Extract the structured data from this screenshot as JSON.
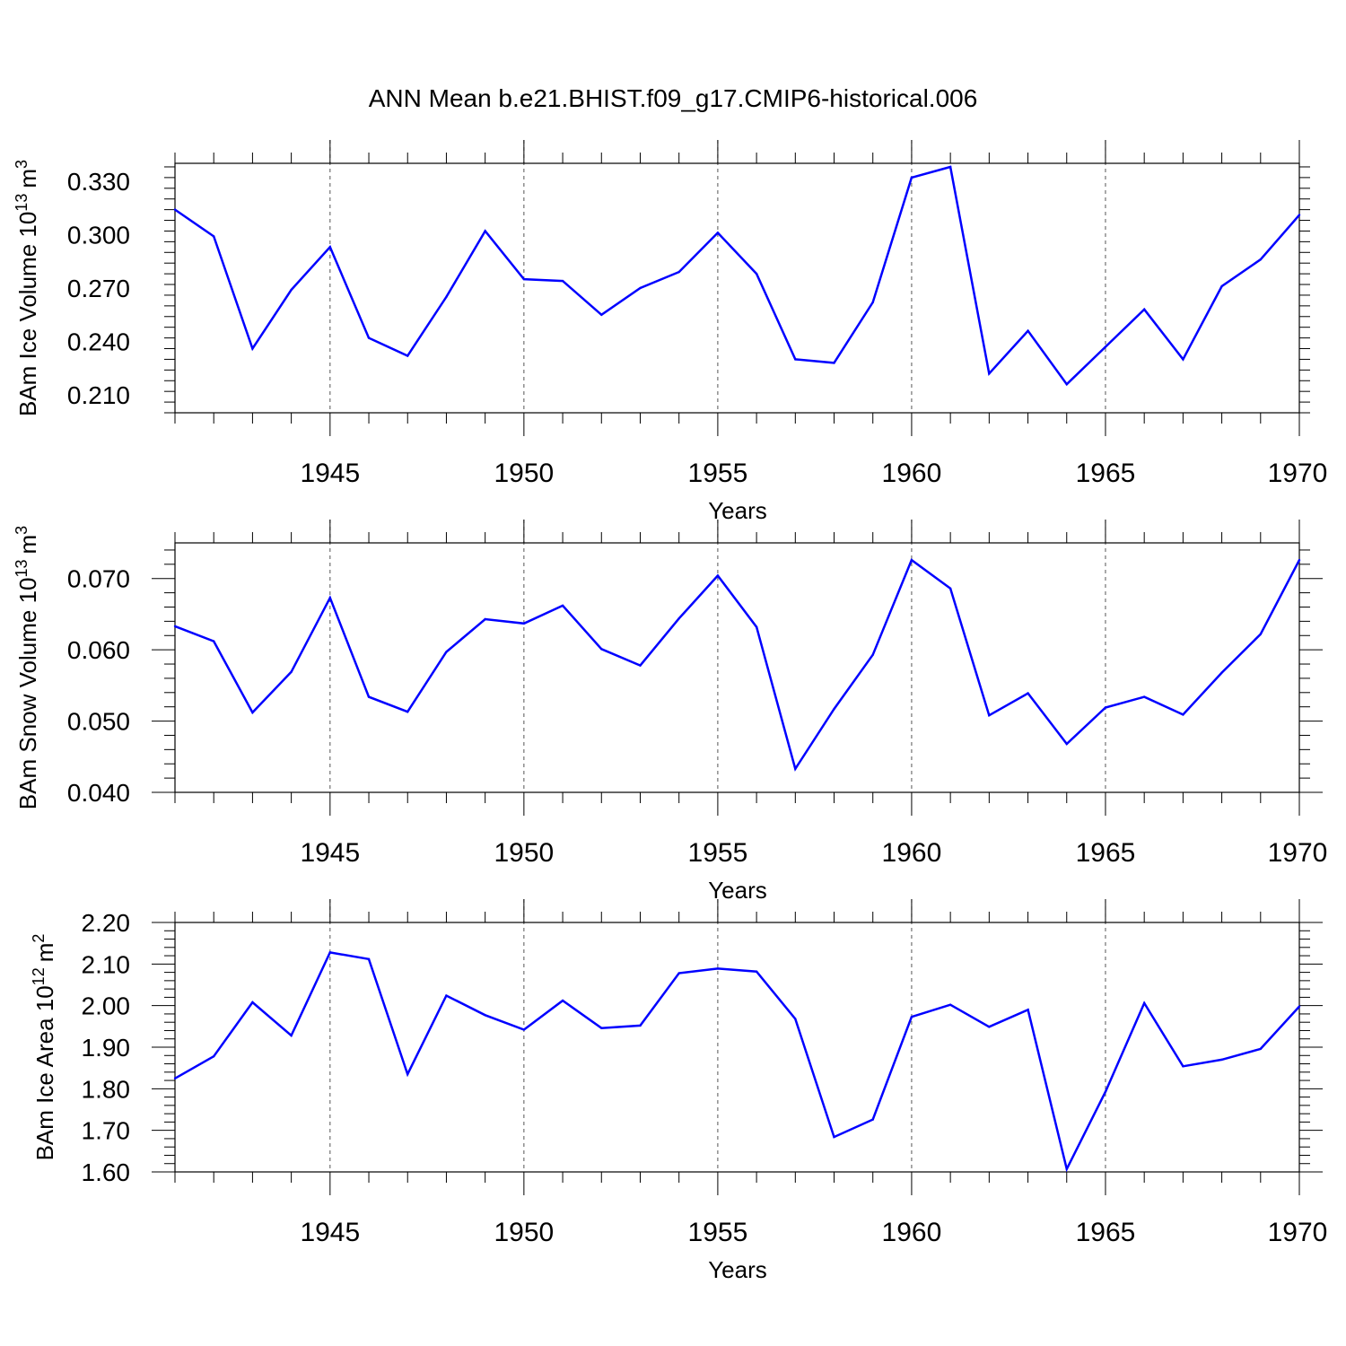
{
  "title": "ANN Mean b.e21.BHIST.f09_g17.CMIP6-historical.006",
  "colors": {
    "series": "#0000ff",
    "axis": "#000000",
    "grid": "#555555"
  },
  "chart_data": [
    {
      "type": "line",
      "ylabel": "BAm Ice Volume 10",
      "ylabel_exp": "13",
      "ylabel_unit": "m",
      "ylabel_unit_exp": "3",
      "xlabel": "Years",
      "xlim": [
        1941,
        1970
      ],
      "ylim": [
        0.2,
        0.34
      ],
      "yticks": [
        "0.210",
        "0.240",
        "0.270",
        "0.300",
        "0.330"
      ],
      "xticks": [
        "1945",
        "1950",
        "1955",
        "1960",
        "1965",
        "1970"
      ],
      "vertical_grid": [
        1945,
        1950,
        1955,
        1960,
        1965
      ],
      "x": [
        1941,
        1942,
        1943,
        1944,
        1945,
        1946,
        1947,
        1948,
        1949,
        1950,
        1951,
        1952,
        1953,
        1954,
        1955,
        1956,
        1957,
        1958,
        1959,
        1960,
        1961,
        1962,
        1963,
        1964,
        1965,
        1966,
        1967,
        1968,
        1969,
        1970
      ],
      "values": [
        0.314,
        0.299,
        0.236,
        0.269,
        0.293,
        0.242,
        0.232,
        0.265,
        0.302,
        0.275,
        0.274,
        0.255,
        0.27,
        0.279,
        0.301,
        0.278,
        0.23,
        0.228,
        0.262,
        0.332,
        0.338,
        0.222,
        0.246,
        0.216,
        0.237,
        0.258,
        0.23,
        0.271,
        0.286,
        0.311
      ]
    },
    {
      "type": "line",
      "ylabel": "BAm Snow Volume 10",
      "ylabel_exp": "13",
      "ylabel_unit": "m",
      "ylabel_unit_exp": "3",
      "xlabel": "Years",
      "xlim": [
        1941,
        1970
      ],
      "ylim": [
        0.04,
        0.075
      ],
      "yticks": [
        "0.040",
        "0.050",
        "0.060",
        "0.070"
      ],
      "xticks": [
        "1945",
        "1950",
        "1955",
        "1960",
        "1965",
        "1970"
      ],
      "vertical_grid": [
        1945,
        1950,
        1955,
        1960,
        1965
      ],
      "x": [
        1941,
        1942,
        1943,
        1944,
        1945,
        1946,
        1947,
        1948,
        1949,
        1950,
        1951,
        1952,
        1953,
        1954,
        1955,
        1956,
        1957,
        1958,
        1959,
        1960,
        1961,
        1962,
        1963,
        1964,
        1965,
        1966,
        1967,
        1968,
        1969,
        1970
      ],
      "values": [
        0.0633,
        0.0612,
        0.0512,
        0.0569,
        0.0673,
        0.0534,
        0.0513,
        0.0597,
        0.0643,
        0.0637,
        0.0662,
        0.0601,
        0.0578,
        0.0644,
        0.0704,
        0.0632,
        0.0433,
        0.0517,
        0.0593,
        0.0726,
        0.0686,
        0.0508,
        0.0539,
        0.0468,
        0.0519,
        0.0534,
        0.0509,
        0.0568,
        0.0622,
        0.0726
      ]
    },
    {
      "type": "line",
      "ylabel": "BAm Ice Area 10",
      "ylabel_exp": "12",
      "ylabel_unit": "m",
      "ylabel_unit_exp": "2",
      "xlabel": "Years",
      "xlim": [
        1941,
        1970
      ],
      "ylim": [
        1.6,
        2.2
      ],
      "yticks": [
        "1.60",
        "1.70",
        "1.80",
        "1.90",
        "2.00",
        "2.10",
        "2.20"
      ],
      "xticks": [
        "1945",
        "1950",
        "1955",
        "1960",
        "1965",
        "1970"
      ],
      "vertical_grid": [
        1945,
        1950,
        1955,
        1960,
        1965
      ],
      "x": [
        1941,
        1942,
        1943,
        1944,
        1945,
        1946,
        1947,
        1948,
        1949,
        1950,
        1951,
        1952,
        1953,
        1954,
        1955,
        1956,
        1957,
        1958,
        1959,
        1960,
        1961,
        1962,
        1963,
        1964,
        1965,
        1966,
        1967,
        1968,
        1969,
        1970
      ],
      "values": [
        1.825,
        1.878,
        2.008,
        1.928,
        2.128,
        2.112,
        1.835,
        2.024,
        1.977,
        1.942,
        2.012,
        1.946,
        1.952,
        2.078,
        2.089,
        2.082,
        1.968,
        1.684,
        1.726,
        1.973,
        2.002,
        1.949,
        1.99,
        1.607,
        1.793,
        2.006,
        1.854,
        1.87,
        1.896,
        1.998
      ]
    }
  ]
}
